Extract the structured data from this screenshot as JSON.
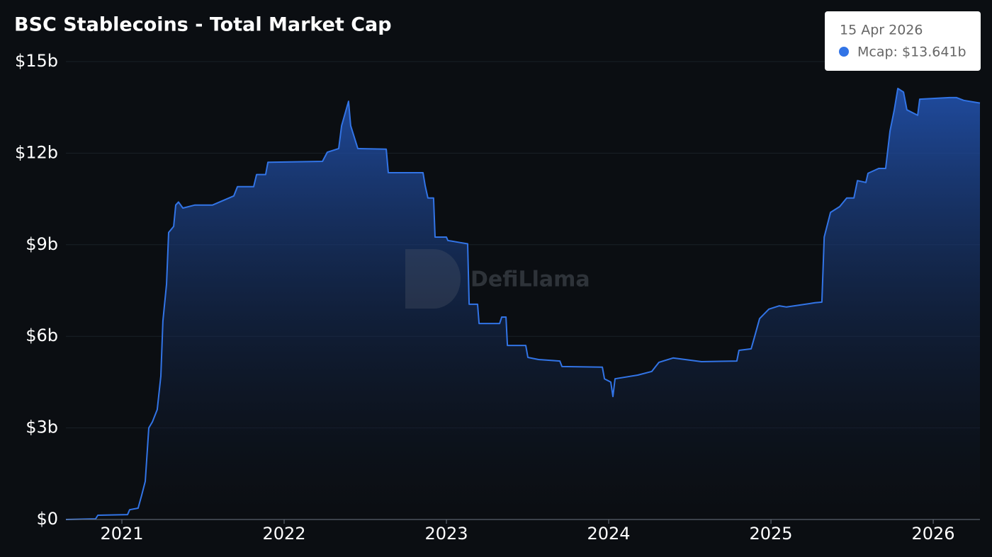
{
  "chart_data": {
    "type": "area",
    "title": "BSC Stablecoins - Total Market Cap",
    "watermark": "DefiLlama",
    "tooltip": {
      "date": "15 Apr 2026",
      "label": "Mcap: $13.641b"
    },
    "color": "#3274e6",
    "grid": true,
    "x": [
      2020.655,
      2020.838,
      2020.852,
      2021.035,
      2021.048,
      2021.1,
      2021.122,
      2021.144,
      2021.166,
      2021.188,
      2021.218,
      2021.24,
      2021.253,
      2021.275,
      2021.288,
      2021.319,
      2021.332,
      2021.349,
      2021.376,
      2021.45,
      2021.559,
      2021.69,
      2021.712,
      2021.812,
      2021.83,
      2021.886,
      2021.9,
      2022.236,
      2022.266,
      2022.336,
      2022.354,
      2022.397,
      2022.41,
      2022.454,
      2022.629,
      2022.642,
      2022.856,
      2022.869,
      2022.886,
      2022.921,
      2022.93,
      2023.0,
      2023.009,
      2023.087,
      2023.131,
      2023.14,
      2023.192,
      2023.201,
      2023.328,
      2023.341,
      2023.367,
      2023.376,
      2023.489,
      2023.502,
      2023.568,
      2023.699,
      2023.712,
      2023.961,
      2023.974,
      2024.013,
      2024.026,
      2024.039,
      2024.179,
      2024.266,
      2024.31,
      2024.397,
      2024.572,
      2024.79,
      2024.803,
      2024.878,
      2024.9,
      2024.93,
      2024.987,
      2025.052,
      2025.096,
      2025.271,
      2025.314,
      2025.328,
      2025.367,
      2025.424,
      2025.467,
      2025.511,
      2025.533,
      2025.585,
      2025.598,
      2025.664,
      2025.707,
      2025.734,
      2025.76,
      2025.782,
      2025.817,
      2025.838,
      2025.904,
      2025.917,
      2026.1,
      2026.144,
      2026.188,
      2026.288
    ],
    "values": [
      0,
      0.02,
      0.14,
      0.16,
      0.32,
      0.37,
      0.79,
      1.25,
      3.0,
      3.2,
      3.6,
      4.7,
      6.5,
      7.7,
      9.4,
      9.6,
      10.3,
      10.4,
      10.2,
      10.3,
      10.3,
      10.6,
      10.9,
      10.9,
      11.3,
      11.3,
      11.7,
      11.73,
      12.03,
      12.15,
      12.9,
      13.7,
      12.9,
      12.15,
      12.13,
      11.36,
      11.36,
      10.94,
      10.53,
      10.53,
      9.25,
      9.25,
      9.14,
      9.07,
      9.03,
      7.05,
      7.05,
      6.42,
      6.42,
      6.63,
      6.63,
      5.7,
      5.7,
      5.31,
      5.24,
      5.19,
      5.01,
      4.99,
      4.61,
      4.5,
      4.03,
      4.61,
      4.73,
      4.85,
      5.15,
      5.29,
      5.17,
      5.19,
      5.54,
      5.59,
      6.0,
      6.58,
      6.89,
      7.0,
      6.96,
      7.1,
      7.12,
      9.25,
      10.06,
      10.25,
      10.53,
      10.53,
      11.1,
      11.04,
      11.34,
      11.5,
      11.5,
      12.73,
      13.42,
      14.12,
      14.0,
      13.42,
      13.24,
      13.77,
      13.82,
      13.82,
      13.73,
      13.641
    ],
    "xlim": [
      2020.655,
      2026.288
    ],
    "xticks": [
      2021,
      2022,
      2023,
      2024,
      2025,
      2026
    ],
    "ylim": [
      0,
      15
    ],
    "yticks": [
      {
        "value": 0,
        "label": "$0"
      },
      {
        "value": 3,
        "label": "$3b"
      },
      {
        "value": 6,
        "label": "$6b"
      },
      {
        "value": 9,
        "label": "$9b"
      },
      {
        "value": 12,
        "label": "$12b"
      },
      {
        "value": 15,
        "label": "$15b"
      }
    ]
  }
}
